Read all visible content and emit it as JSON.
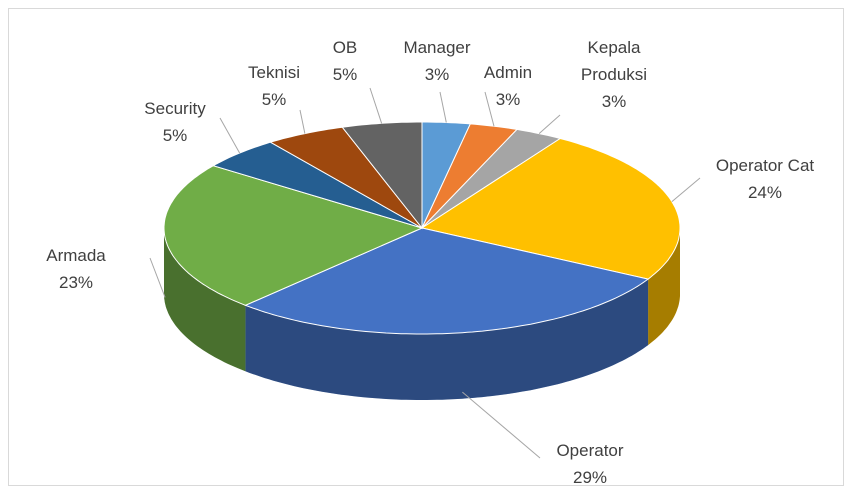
{
  "chart_data": {
    "type": "pie3d",
    "categories": [
      "Manager",
      "Admin",
      "Kepala Produksi",
      "Operator Cat",
      "Operator",
      "Armada",
      "Security",
      "Teknisi",
      "OB"
    ],
    "values": [
      3,
      3,
      3,
      24,
      29,
      23,
      5,
      5,
      5
    ],
    "value_labels": [
      "3%",
      "3%",
      "3%",
      "24%",
      "29%",
      "23%",
      "5%",
      "5%",
      "5%"
    ],
    "colors": [
      "#5b9bd5",
      "#ed7d31",
      "#a5a5a5",
      "#ffc000",
      "#4472c4",
      "#70ad47",
      "#255e91",
      "#9e480e",
      "#636363"
    ]
  }
}
